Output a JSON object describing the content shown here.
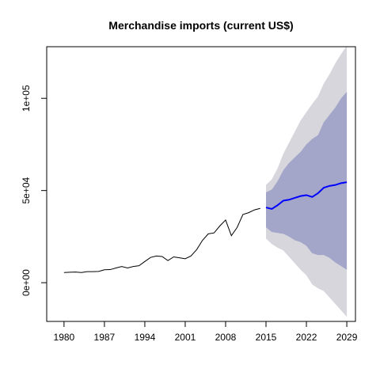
{
  "chart_data": {
    "type": "line",
    "title": "Merchandise imports (current US$)",
    "xlabel": "",
    "ylabel": "",
    "xlim": [
      1977,
      2030.5
    ],
    "ylim": [
      -21000,
      128000
    ],
    "x_ticks": [
      1980,
      1987,
      1994,
      2001,
      2008,
      2015,
      2022,
      2029
    ],
    "x_tick_labels": [
      "1980",
      "1987",
      "1994",
      "2001",
      "2008",
      "2015",
      "2022",
      "2029"
    ],
    "y_ticks": [
      0,
      50000,
      100000
    ],
    "y_tick_labels": [
      "0e+00",
      "5e+04",
      "1e+05"
    ],
    "grid": false,
    "legend": "none",
    "colors": {
      "history": "#000000",
      "forecast": "#0000ff",
      "band_80": "#a3a6c9",
      "band_95": "#d6d6dc"
    },
    "series": [
      {
        "x": [
          1980,
          1981,
          1982,
          1983,
          1984,
          1985,
          1986,
          1987,
          1988,
          1989,
          1990,
          1991,
          1992,
          1993,
          1994,
          1995,
          1996,
          1997,
          1998,
          1999,
          2000,
          2001,
          2002,
          2003,
          2004,
          2005,
          2006,
          2007,
          2008,
          2009,
          2010,
          2011,
          2012,
          2013,
          2014
        ],
        "values": [
          5500,
          5700,
          5800,
          5500,
          6000,
          6000,
          6100,
          7000,
          7100,
          8000,
          8800,
          8000,
          8800,
          9200,
          11500,
          13700,
          14500,
          14200,
          12000,
          14000,
          13500,
          13000,
          14500,
          18000,
          23000,
          26500,
          27000,
          30800,
          34000,
          25500,
          30000,
          37000,
          38000,
          39500,
          40300
        ]
      },
      {
        "x": [
          2015,
          2016,
          2017,
          2018,
          2019,
          2020,
          2021,
          2022,
          2023,
          2024,
          2025,
          2026,
          2027,
          2028,
          2029
        ],
        "values": [
          40800,
          40000,
          42000,
          44500,
          45000,
          46000,
          47000,
          47500,
          46500,
          48500,
          51500,
          52500,
          53000,
          54000,
          54500
        ],
        "lower_80": [
          30000,
          27500,
          27000,
          26500,
          25000,
          23000,
          22000,
          20000,
          16000,
          15000,
          15000,
          13500,
          11000,
          9000,
          7000
        ],
        "upper_80": [
          49000,
          50500,
          55000,
          61000,
          65000,
          68000,
          71000,
          75000,
          78000,
          80000,
          87000,
          91000,
          95000,
          100000,
          103500
        ],
        "lower_95": [
          24000,
          21000,
          19000,
          17500,
          14000,
          10500,
          7000,
          4000,
          -1000,
          -3000,
          -4500,
          -8000,
          -11500,
          -15000,
          -18500
        ],
        "upper_95": [
          53000,
          56000,
          62000,
          70000,
          76000,
          82000,
          88000,
          92500,
          97000,
          101000,
          108000,
          113000,
          119000,
          124000,
          128500
        ]
      }
    ]
  }
}
